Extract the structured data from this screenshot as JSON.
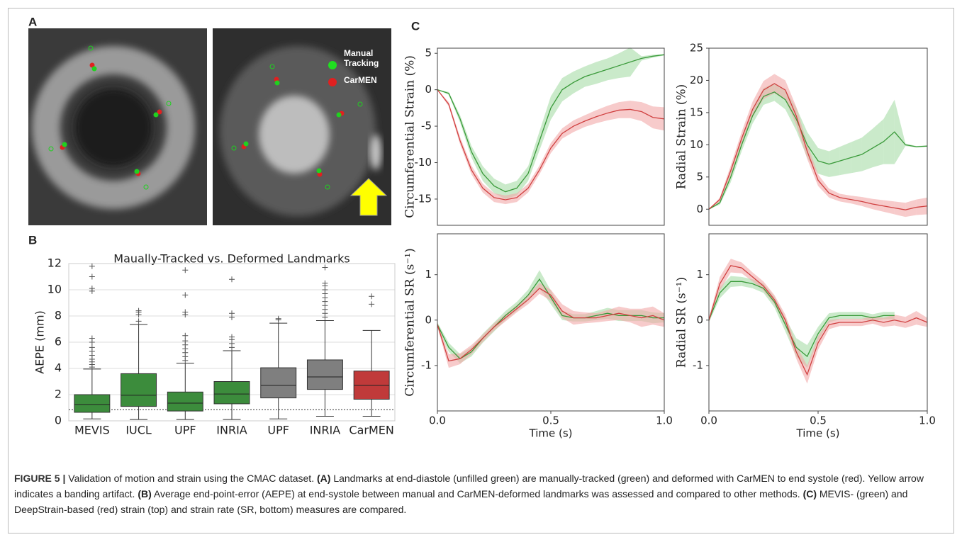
{
  "panel_labels": [
    "A",
    "B",
    "C"
  ],
  "legend": {
    "manual": "Manual\nTracking",
    "carmen": "CarMEN"
  },
  "chart_data": [
    {
      "type": "box",
      "title": "Maually-Tracked vs. Deformed Landmarks",
      "ylabel": "AEPE (mm)",
      "ylim": [
        0,
        12
      ],
      "yticks": [
        0,
        2,
        4,
        6,
        8,
        10,
        12
      ],
      "grid": true,
      "reference_line": 0.85,
      "boxes": [
        {
          "name": "MEVIS",
          "color": "#3c8c3c",
          "low": 0.15,
          "q1": 0.65,
          "median": 1.25,
          "q3": 2.0,
          "high": 3.95,
          "outliers": [
            4.1,
            4.3,
            4.5,
            4.7,
            5.0,
            5.3,
            5.6,
            6.0,
            6.3,
            9.9,
            10.1,
            11.0,
            11.8
          ]
        },
        {
          "name": "IUCL",
          "color": "#3c8c3c",
          "low": 0.1,
          "q1": 1.1,
          "median": 1.95,
          "q3": 3.6,
          "high": 7.35,
          "outliers": [
            7.6,
            8.1,
            8.3,
            8.4
          ]
        },
        {
          "name": "UPF",
          "color": "#3c8c3c",
          "low": 0.1,
          "q1": 0.75,
          "median": 1.35,
          "q3": 2.2,
          "high": 4.4,
          "outliers": [
            4.6,
            4.9,
            5.2,
            5.5,
            5.8,
            6.1,
            6.5,
            8.1,
            8.3,
            9.6,
            11.5
          ]
        },
        {
          "name": "INRIA",
          "color": "#3c8c3c",
          "low": 0.1,
          "q1": 1.3,
          "median": 2.05,
          "q3": 3.0,
          "high": 5.35,
          "outliers": [
            5.6,
            5.9,
            6.2,
            6.4,
            7.9,
            8.2,
            10.8
          ]
        },
        {
          "name": "UPF",
          "color": "#7f7f7f",
          "low": 0.15,
          "q1": 1.75,
          "median": 2.7,
          "q3": 4.05,
          "high": 7.45,
          "outliers": [
            7.7,
            7.8
          ]
        },
        {
          "name": "INRIA",
          "color": "#7f7f7f",
          "low": 0.35,
          "q1": 2.4,
          "median": 3.35,
          "q3": 4.65,
          "high": 7.65,
          "outliers": [
            7.9,
            8.2,
            8.5,
            8.8,
            9.1,
            9.4,
            9.7,
            10.0,
            10.3,
            10.5,
            11.7
          ]
        },
        {
          "name": "CarMEN",
          "color": "#c03a3a",
          "low": 0.35,
          "q1": 1.65,
          "median": 2.7,
          "q3": 3.8,
          "high": 6.9,
          "outliers": [
            8.9,
            9.5
          ]
        }
      ]
    },
    {
      "type": "line",
      "ylabel": "Circumferential Strain (%)",
      "xlim": [
        0,
        1
      ],
      "xticks": [
        {
          "value": 0,
          "label": "0.0"
        },
        {
          "value": 0.5,
          "label": "0.5"
        },
        {
          "value": 1,
          "label": "1.0"
        }
      ],
      "ylim": [
        -18.6,
        5.7
      ],
      "yticks": [
        -15,
        -10,
        -5,
        0,
        5
      ],
      "x": [
        0,
        0.05,
        0.1,
        0.15,
        0.2,
        0.25,
        0.3,
        0.35,
        0.4,
        0.45,
        0.5,
        0.55,
        0.6,
        0.65,
        0.7,
        0.75,
        0.8,
        0.85,
        0.9,
        0.95,
        1
      ],
      "series": [
        {
          "color": "#3a9a3a",
          "band_color": "#a6dca6",
          "values": [
            0,
            -0.5,
            -4,
            -8.5,
            -11.5,
            -13.2,
            -14,
            -13.5,
            -11.5,
            -7,
            -2.5,
            0,
            1,
            1.8,
            2.3,
            2.8,
            3.3,
            3.8,
            4.3,
            4.6,
            4.8
          ],
          "errors": [
            0,
            0.2,
            0.5,
            0.8,
            1,
            1,
            1,
            1,
            1,
            1.3,
            1.6,
            1.6,
            1.5,
            1.4,
            1.5,
            1.5,
            1.7,
            2,
            0.3,
            0.2,
            0.1
          ]
        },
        {
          "color": "#d04040",
          "band_color": "#f2a8a8",
          "values": [
            0,
            -2,
            -7,
            -11,
            -13.5,
            -14.8,
            -15.1,
            -14.8,
            -13.5,
            -11,
            -8,
            -6,
            -5,
            -4.3,
            -3.7,
            -3.2,
            -2.8,
            -2.7,
            -3,
            -3.8,
            -4
          ],
          "errors": [
            0,
            0.3,
            0.5,
            0.6,
            0.6,
            0.6,
            0.6,
            0.6,
            0.6,
            0.6,
            0.7,
            0.7,
            0.8,
            0.8,
            0.9,
            1,
            1.1,
            1.2,
            1.3,
            1.5,
            1.6
          ]
        }
      ]
    },
    {
      "type": "line",
      "ylabel": "Radial Strain (%)",
      "xlim": [
        0,
        1
      ],
      "xticks": [
        {
          "value": 0,
          "label": "0.0"
        },
        {
          "value": 0.5,
          "label": "0.5"
        },
        {
          "value": 1,
          "label": "1.0"
        }
      ],
      "ylim": [
        -2.5,
        25
      ],
      "yticks": [
        0,
        5,
        10,
        15,
        20,
        25
      ],
      "x": [
        0,
        0.05,
        0.1,
        0.15,
        0.2,
        0.25,
        0.3,
        0.35,
        0.4,
        0.45,
        0.5,
        0.55,
        0.6,
        0.65,
        0.7,
        0.75,
        0.8,
        0.85,
        0.9,
        0.95,
        1
      ],
      "series": [
        {
          "color": "#3a9a3a",
          "band_color": "#a6dca6",
          "values": [
            0,
            1,
            5,
            10,
            14.5,
            17.5,
            18.2,
            17,
            14,
            10,
            7.5,
            7,
            7.5,
            8,
            8.5,
            9.5,
            10.5,
            12,
            10,
            9.7,
            9.8
          ],
          "errors": [
            0,
            0.3,
            0.8,
            1,
            1.2,
            1.3,
            1.4,
            1.5,
            1.8,
            2,
            2,
            2,
            2.2,
            2.4,
            2.6,
            3,
            3.5,
            5,
            0.2,
            0.1,
            0.1
          ]
        },
        {
          "color": "#d04040",
          "band_color": "#f2a8a8",
          "values": [
            0,
            1.5,
            6,
            11,
            15.5,
            18.5,
            19.5,
            18.5,
            14.5,
            9,
            4.5,
            2.5,
            1.8,
            1.5,
            1.2,
            0.8,
            0.5,
            0.2,
            -0.1,
            0.3,
            0.5
          ],
          "errors": [
            0,
            0.3,
            0.8,
            1,
            1.2,
            1.4,
            1.5,
            1.5,
            1.4,
            1.2,
            0.9,
            0.7,
            0.6,
            0.6,
            0.7,
            0.8,
            0.9,
            1,
            1.1,
            1.2,
            1.3
          ]
        }
      ]
    },
    {
      "type": "line",
      "ylabel": "Circumferential SR (s⁻¹)",
      "xlabel": "Time (s)",
      "xlim": [
        0,
        1
      ],
      "xticks": [
        {
          "value": 0,
          "label": "0.0"
        },
        {
          "value": 0.5,
          "label": "0.5"
        },
        {
          "value": 1,
          "label": "1.0"
        }
      ],
      "ylim": [
        -2,
        1.9
      ],
      "yticks": [
        -1,
        0,
        1
      ],
      "x": [
        0,
        0.05,
        0.1,
        0.15,
        0.2,
        0.25,
        0.3,
        0.35,
        0.4,
        0.45,
        0.5,
        0.55,
        0.6,
        0.65,
        0.7,
        0.75,
        0.8,
        0.85,
        0.9,
        0.95,
        1
      ],
      "series": [
        {
          "color": "#3a9a3a",
          "band_color": "#a6dca6",
          "values": [
            -0.1,
            -0.6,
            -0.85,
            -0.7,
            -0.4,
            -0.15,
            0.1,
            0.3,
            0.55,
            0.9,
            0.5,
            0.1,
            0.05,
            0.05,
            0.1,
            0.15,
            0.1,
            0.1,
            0.1,
            0.05,
            0.05
          ],
          "errors": [
            0.05,
            0.1,
            0.1,
            0.1,
            0.1,
            0.1,
            0.1,
            0.1,
            0.12,
            0.2,
            0.15,
            0.1,
            0.08,
            0.08,
            0.1,
            0.12,
            0.12,
            0.12,
            0.12,
            0.12,
            0.1
          ]
        },
        {
          "color": "#d04040",
          "band_color": "#f2a8a8",
          "values": [
            -0.1,
            -0.9,
            -0.85,
            -0.65,
            -0.4,
            -0.15,
            0.05,
            0.25,
            0.45,
            0.7,
            0.55,
            0.2,
            0.05,
            0.05,
            0.05,
            0.1,
            0.15,
            0.1,
            0.05,
            0.1,
            0
          ],
          "errors": [
            0.05,
            0.15,
            0.12,
            0.1,
            0.08,
            0.08,
            0.08,
            0.08,
            0.1,
            0.12,
            0.12,
            0.15,
            0.15,
            0.12,
            0.1,
            0.12,
            0.15,
            0.15,
            0.2,
            0.2,
            0.15
          ]
        }
      ]
    },
    {
      "type": "line",
      "ylabel": "Radial SR (s⁻¹)",
      "xlabel": "Time (s)",
      "xlim": [
        0,
        1
      ],
      "xticks": [
        {
          "value": 0,
          "label": "0.0"
        },
        {
          "value": 0.5,
          "label": "0.5"
        },
        {
          "value": 1,
          "label": "1.0"
        }
      ],
      "ylim": [
        -2,
        1.9
      ],
      "yticks": [
        -1,
        0,
        1
      ],
      "x": [
        0,
        0.05,
        0.1,
        0.15,
        0.2,
        0.25,
        0.3,
        0.35,
        0.4,
        0.45,
        0.5,
        0.55,
        0.6,
        0.65,
        0.7,
        0.75,
        0.8,
        0.85,
        0.9,
        0.95,
        1
      ],
      "series": [
        {
          "color": "#3a9a3a",
          "band_color": "#a6dca6",
          "values": [
            0,
            0.6,
            0.85,
            0.85,
            0.8,
            0.7,
            0.4,
            -0.1,
            -0.6,
            -0.8,
            -0.3,
            0.05,
            0.1,
            0.1,
            0.1,
            0.05,
            0.1,
            0.1,
            null,
            null,
            null
          ],
          "errors": [
            0.05,
            0.12,
            0.12,
            0.1,
            0.1,
            0.1,
            0.12,
            0.15,
            0.2,
            0.25,
            0.15,
            0.1,
            0.08,
            0.08,
            0.08,
            0.08,
            0.08,
            0.08,
            null,
            null,
            null
          ]
        },
        {
          "color": "#d04040",
          "band_color": "#f2a8a8",
          "values": [
            0,
            0.8,
            1.2,
            1.15,
            0.95,
            0.75,
            0.45,
            0,
            -0.7,
            -1.2,
            -0.5,
            -0.1,
            -0.05,
            -0.05,
            -0.05,
            0,
            -0.05,
            0,
            -0.05,
            0.05,
            -0.05
          ],
          "errors": [
            0.05,
            0.15,
            0.15,
            0.12,
            0.1,
            0.1,
            0.1,
            0.12,
            0.15,
            0.2,
            0.15,
            0.1,
            0.08,
            0.08,
            0.08,
            0.08,
            0.1,
            0.12,
            0.12,
            0.15,
            0.1
          ]
        }
      ]
    }
  ],
  "caption": [
    "FIGURE 5 |",
    "Validation of motion and strain using the CMAC dataset.",
    "(A)",
    "Landmarks at end-diastole (unfilled green) are manually-tracked (green) and deformed with CarMEN to end systole (red). Yellow arrow indicates a banding artifact.",
    "(B)",
    "Average end-point-error (AEPE) at end-systole between manual and CarMEN-deformed landmarks was assessed and compared to other methods.",
    "(C)",
    "MEVIS- (green) and DeepStrain-based (red) strain (top) and strain rate (SR, bottom) measures are compared."
  ]
}
